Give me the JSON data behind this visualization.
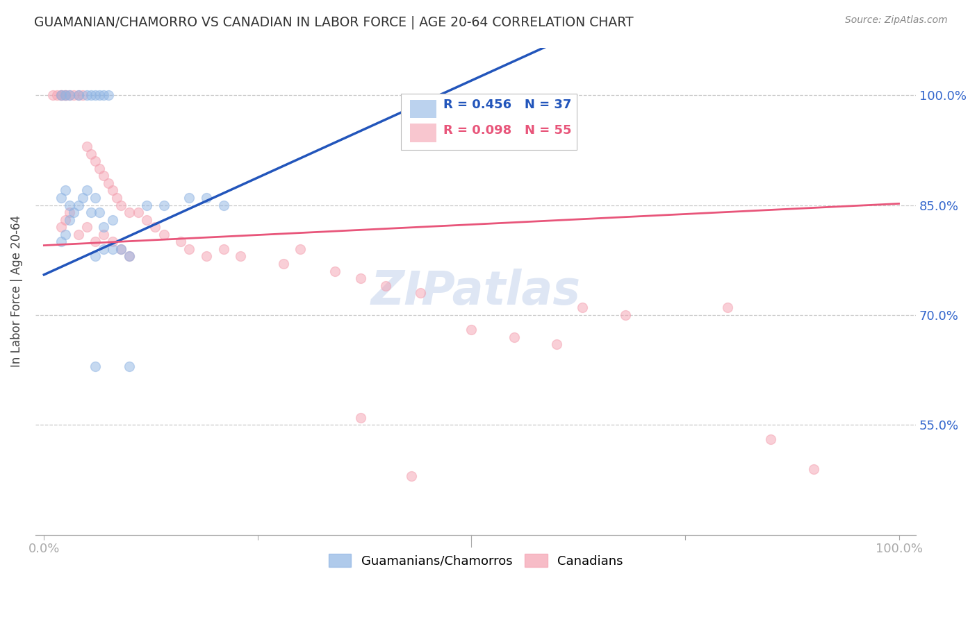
{
  "title": "GUAMANIAN/CHAMORRO VS CANADIAN IN LABOR FORCE | AGE 20-64 CORRELATION CHART",
  "source": "Source: ZipAtlas.com",
  "ylabel": "In Labor Force | Age 20-64",
  "ytick_values": [
    0.55,
    0.7,
    0.85,
    1.0
  ],
  "ytick_labels": [
    "55.0%",
    "70.0%",
    "85.0%",
    "100.0%"
  ],
  "xlim": [
    0.0,
    1.0
  ],
  "ylim": [
    0.4,
    1.05
  ],
  "legend_blue_r": "R = 0.456",
  "legend_blue_n": "N = 37",
  "legend_pink_r": "R = 0.098",
  "legend_pink_n": "N = 55",
  "blue_color": "#8EB4E3",
  "pink_color": "#F4A0B0",
  "blue_line_color": "#2255BB",
  "pink_line_color": "#E8557A",
  "legend_label_blue": "Guamanians/Chamorros",
  "legend_label_pink": "Canadians",
  "blue_line_x0": 0.0,
  "blue_line_y0": 0.755,
  "blue_line_x1": 0.5,
  "blue_line_y1": 1.02,
  "pink_line_x0": 0.0,
  "pink_line_y0": 0.795,
  "pink_line_x1": 1.0,
  "pink_line_y1": 0.852,
  "blue_x": [
    0.02,
    0.025,
    0.03,
    0.04,
    0.05,
    0.055,
    0.06,
    0.065,
    0.07,
    0.075,
    0.02,
    0.025,
    0.03,
    0.035,
    0.04,
    0.045,
    0.05,
    0.055,
    0.06,
    0.065,
    0.02,
    0.025,
    0.03,
    0.07,
    0.08,
    0.09,
    0.12,
    0.14,
    0.17,
    0.19,
    0.21,
    0.06,
    0.07,
    0.08,
    0.1,
    0.06,
    0.1
  ],
  "blue_y": [
    1.0,
    1.0,
    1.0,
    1.0,
    1.0,
    1.0,
    1.0,
    1.0,
    1.0,
    1.0,
    0.86,
    0.87,
    0.85,
    0.84,
    0.85,
    0.86,
    0.87,
    0.84,
    0.86,
    0.84,
    0.8,
    0.81,
    0.83,
    0.82,
    0.83,
    0.79,
    0.85,
    0.85,
    0.86,
    0.86,
    0.85,
    0.78,
    0.79,
    0.79,
    0.78,
    0.63,
    0.63
  ],
  "pink_x": [
    0.01,
    0.015,
    0.02,
    0.025,
    0.02,
    0.025,
    0.03,
    0.035,
    0.04,
    0.045,
    0.05,
    0.055,
    0.06,
    0.065,
    0.07,
    0.075,
    0.08,
    0.085,
    0.09,
    0.1,
    0.02,
    0.025,
    0.03,
    0.04,
    0.05,
    0.06,
    0.07,
    0.08,
    0.09,
    0.1,
    0.11,
    0.12,
    0.13,
    0.14,
    0.16,
    0.17,
    0.19,
    0.21,
    0.23,
    0.28,
    0.3,
    0.34,
    0.37,
    0.4,
    0.44,
    0.5,
    0.55,
    0.6,
    0.63,
    0.68,
    0.8,
    0.85,
    0.9,
    0.37,
    0.43
  ],
  "pink_y": [
    1.0,
    1.0,
    1.0,
    1.0,
    1.0,
    1.0,
    1.0,
    1.0,
    1.0,
    1.0,
    0.93,
    0.92,
    0.91,
    0.9,
    0.89,
    0.88,
    0.87,
    0.86,
    0.85,
    0.84,
    0.82,
    0.83,
    0.84,
    0.81,
    0.82,
    0.8,
    0.81,
    0.8,
    0.79,
    0.78,
    0.84,
    0.83,
    0.82,
    0.81,
    0.8,
    0.79,
    0.78,
    0.79,
    0.78,
    0.77,
    0.79,
    0.76,
    0.75,
    0.74,
    0.73,
    0.68,
    0.67,
    0.66,
    0.71,
    0.7,
    0.71,
    0.53,
    0.49,
    0.56,
    0.48
  ],
  "background_color": "#FFFFFF",
  "grid_color": "#C8C8C8",
  "axis_label_color": "#3366CC",
  "marker_size": 100,
  "marker_alpha": 0.5
}
